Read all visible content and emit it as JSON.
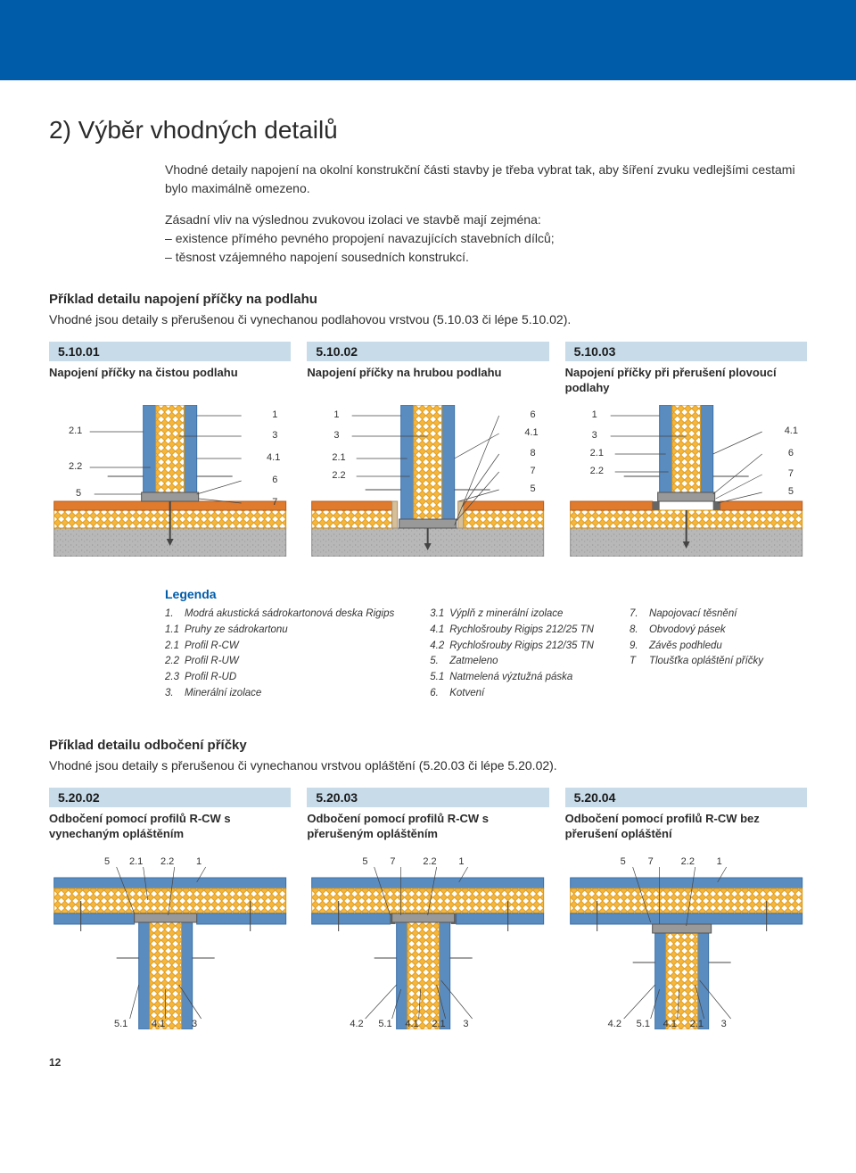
{
  "colors": {
    "brand_blue": "#005ca9",
    "band_blue": "#c7dbe9",
    "wall_blue": "#5a8cc0",
    "wall_blue_dk": "#3a6fa8",
    "insulation_yellow": "#f6b63b",
    "insulation_yellow_dk": "#d99514",
    "screed_orange": "#e07b2e",
    "concrete_gray": "#b8b8b8",
    "concrete_gray_dk": "#8f8f8f",
    "line_dark": "#444444",
    "foam_tan": "#d6c09a",
    "seal_gray": "#666666"
  },
  "header": {
    "title": "2) Výběr vhodných detailů"
  },
  "intro": {
    "p1": "Vhodné detaily napojení na okolní konstrukční části stavby je třeba vybrat tak, aby šíření zvuku vedlejšími cestami bylo maximálně omezeno.",
    "p2_lead": "Zásadní vliv na výslednou zvukovou izolaci ve stavbě mají zejména:",
    "p2_b1": "existence přímého pevného propojení navazujících stavebních dílců;",
    "p2_b2": "těsnost vzájemného napojení sousedních konstrukcí."
  },
  "section1": {
    "heading": "Příklad detailu napojení příčky na podlahu",
    "sub": "Vhodné jsou detaily s přerušenou či vynechanou podlahovou vrstvou (5.10.03 či lépe 5.10.02).",
    "cards": [
      {
        "code": "5.10.01",
        "title": "Napojení příčky na čistou podlahu"
      },
      {
        "code": "5.10.02",
        "title": "Napojení příčky na hrubou podlahu"
      },
      {
        "code": "5.10.03",
        "title": "Napojení příčky při přerušení plovoucí podlahy"
      }
    ],
    "labels": {
      "d1_left": [
        "2.1",
        "2.2",
        "5"
      ],
      "d1_right": [
        "1",
        "3",
        "4.1",
        "6",
        "7"
      ],
      "d2_left": [
        "1",
        "3",
        "2.1",
        "2.2"
      ],
      "d2_right": [
        "6",
        "4.1",
        "8",
        "7",
        "5"
      ],
      "d3_left": [
        "1",
        "3",
        "2.1",
        "2.2"
      ],
      "d3_right": [
        "4.1",
        "6",
        "7",
        "5"
      ]
    }
  },
  "legend": {
    "title": "Legenda",
    "col1": [
      [
        "1.",
        "Modrá akustická sádrokartonová deska Rigips"
      ],
      [
        "1.1",
        "Pruhy ze sádrokartonu"
      ],
      [
        "2.1",
        "Profil R-CW"
      ],
      [
        "2.2",
        "Profil R-UW"
      ],
      [
        "2.3",
        "Profil R-UD"
      ],
      [
        "3.",
        "Minerální izolace"
      ]
    ],
    "col2": [
      [
        "3.1",
        "Výplň z minerální izolace"
      ],
      [
        "4.1",
        "Rychlošrouby Rigips 212/25 TN"
      ],
      [
        "4.2",
        "Rychlošrouby Rigips 212/35 TN"
      ],
      [
        "5.",
        "Zatmeleno"
      ],
      [
        "5.1",
        "Natmelená výztužná páska"
      ],
      [
        "6.",
        "Kotvení"
      ]
    ],
    "col3": [
      [
        "7.",
        "Napojovací těsnění"
      ],
      [
        "8.",
        "Obvodový pásek"
      ],
      [
        "9.",
        "Závěs podhledu"
      ],
      [
        "T",
        "Tloušťka opláštění příčky"
      ]
    ]
  },
  "section2": {
    "heading": "Příklad detailu odbočení příčky",
    "sub": "Vhodné jsou detaily s přerušenou či vynechanou vrstvou opláštění (5.20.03 či lépe 5.20.02).",
    "cards": [
      {
        "code": "5.20.02",
        "title": "Odbočení pomocí profilů R-CW s vynechaným opláštěním"
      },
      {
        "code": "5.20.03",
        "title": "Odbočení pomocí profilů R-CW s přerušeným opláštěním"
      },
      {
        "code": "5.20.04",
        "title": "Odbočení pomocí profilů R-CW bez přerušení opláštění"
      }
    ],
    "labels": {
      "d1_top": [
        "5",
        "2.1",
        "2.2",
        "1"
      ],
      "d1_bot": [
        "5.1",
        "4.1",
        "3"
      ],
      "d2_top": [
        "5",
        "7",
        "2.2",
        "1"
      ],
      "d2_bot": [
        "4.2",
        "5.1",
        "4.1",
        "2.1",
        "3"
      ],
      "d3_top": [
        "5",
        "7",
        "2.2",
        "1"
      ],
      "d3_bot": [
        "4.2",
        "5.1",
        "4.1",
        "2.1",
        "3"
      ]
    }
  },
  "page_number": "12"
}
